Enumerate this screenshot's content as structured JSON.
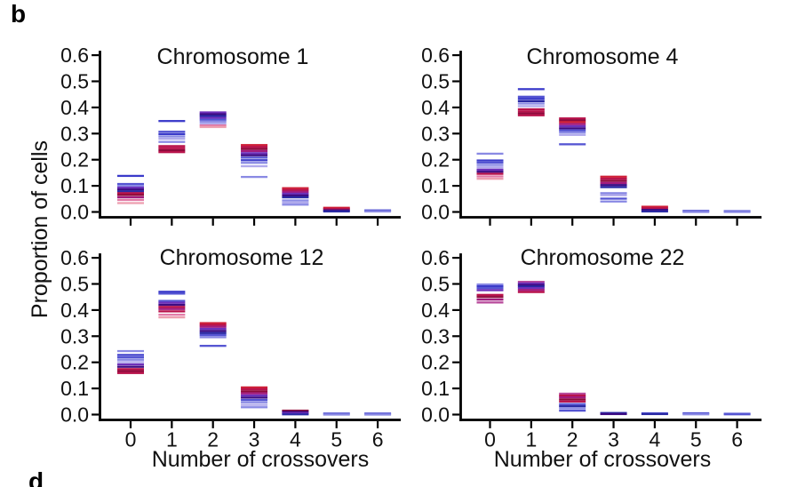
{
  "panel": {
    "top_label": "b",
    "bottom_label": "d"
  },
  "axis": {
    "ylabel": "Proportion of cells",
    "xlabel": "Number of crossovers"
  },
  "palette": {
    "blue": "#3b3bca",
    "navy": "#2a2aa4",
    "slate": "#5454d2",
    "periwinkle": "#8a8ae4",
    "lavender": "#b0aaec",
    "purple": "#6e30ba",
    "deepPurple": "#3d0c82",
    "magenta": "#a21b7e",
    "orchid": "#b84b9c",
    "crimson": "#b8124a",
    "darkRed": "#8e0a3c",
    "red": "#cf2038",
    "pink": "#e27aa6",
    "salmon": "#eda0b0"
  },
  "chart_data": [
    {
      "type": "scatter",
      "marker": "horizontal-dash",
      "title": "Chromosome 1",
      "xlabel": "Number of crossovers",
      "ylabel": "Proportion of cells",
      "x": [
        0,
        1,
        2,
        3,
        4,
        5,
        6
      ],
      "ylim": [
        0,
        0.6
      ],
      "yticks": [
        "0.6",
        "0.5",
        "0.4",
        "0.3",
        "0.2",
        "0.1",
        "0.0"
      ],
      "grid": false,
      "show_x_labels": false,
      "groups": [
        {
          "x": 0,
          "lines": [
            [
              0.138,
              "blue"
            ],
            [
              0.107,
              "slate"
            ],
            [
              0.1,
              "periwinkle"
            ],
            [
              0.093,
              "purple"
            ],
            [
              0.086,
              "deepPurple"
            ],
            [
              0.079,
              "navy"
            ],
            [
              0.072,
              "crimson"
            ],
            [
              0.065,
              "darkRed"
            ],
            [
              0.056,
              "magenta"
            ],
            [
              0.046,
              "pink"
            ],
            [
              0.034,
              "salmon"
            ]
          ]
        },
        {
          "x": 1,
          "lines": [
            [
              0.348,
              "blue"
            ],
            [
              0.307,
              "slate"
            ],
            [
              0.298,
              "blue"
            ],
            [
              0.289,
              "periwinkle"
            ],
            [
              0.28,
              "lavender"
            ],
            [
              0.268,
              "periwinkle"
            ],
            [
              0.252,
              "crimson"
            ],
            [
              0.244,
              "crimson"
            ],
            [
              0.236,
              "darkRed"
            ],
            [
              0.229,
              "crimson"
            ]
          ]
        },
        {
          "x": 2,
          "lines": [
            [
              0.381,
              "purple"
            ],
            [
              0.374,
              "deepPurple"
            ],
            [
              0.367,
              "navy"
            ],
            [
              0.36,
              "purple"
            ],
            [
              0.353,
              "slate"
            ],
            [
              0.346,
              "periwinkle"
            ],
            [
              0.338,
              "lavender"
            ],
            [
              0.331,
              "pink"
            ],
            [
              0.325,
              "salmon"
            ]
          ]
        },
        {
          "x": 3,
          "lines": [
            [
              0.256,
              "red"
            ],
            [
              0.249,
              "crimson"
            ],
            [
              0.241,
              "darkRed"
            ],
            [
              0.233,
              "magenta"
            ],
            [
              0.225,
              "purple"
            ],
            [
              0.217,
              "deepPurple"
            ],
            [
              0.208,
              "slate"
            ],
            [
              0.198,
              "blue"
            ],
            [
              0.188,
              "periwinkle"
            ],
            [
              0.175,
              "lavender"
            ],
            [
              0.134,
              "periwinkle"
            ]
          ]
        },
        {
          "x": 4,
          "lines": [
            [
              0.091,
              "red"
            ],
            [
              0.084,
              "crimson"
            ],
            [
              0.077,
              "magenta"
            ],
            [
              0.07,
              "purple"
            ],
            [
              0.063,
              "deepPurple"
            ],
            [
              0.056,
              "navy"
            ],
            [
              0.044,
              "periwinkle"
            ],
            [
              0.036,
              "lavender"
            ],
            [
              0.028,
              "periwinkle"
            ]
          ]
        },
        {
          "x": 5,
          "lines": [
            [
              0.016,
              "red"
            ],
            [
              0.011,
              "crimson"
            ],
            [
              0.006,
              "deepPurple"
            ],
            [
              0.002,
              "navy"
            ]
          ]
        },
        {
          "x": 6,
          "lines": [
            [
              0.006,
              "slate"
            ],
            [
              0.002,
              "periwinkle"
            ]
          ]
        }
      ]
    },
    {
      "type": "scatter",
      "marker": "horizontal-dash",
      "title": "Chromosome 4",
      "xlabel": "Number of crossovers",
      "ylabel": "Proportion of cells",
      "x": [
        0,
        1,
        2,
        3,
        4,
        5,
        6
      ],
      "ylim": [
        0,
        0.6
      ],
      "yticks": [
        "0.6",
        "0.5",
        "0.4",
        "0.3",
        "0.2",
        "0.1",
        "0.0"
      ],
      "grid": false,
      "show_x_labels": false,
      "groups": [
        {
          "x": 0,
          "lines": [
            [
              0.223,
              "periwinkle"
            ],
            [
              0.197,
              "blue"
            ],
            [
              0.189,
              "slate"
            ],
            [
              0.18,
              "periwinkle"
            ],
            [
              0.171,
              "lavender"
            ],
            [
              0.162,
              "purple"
            ],
            [
              0.154,
              "deepPurple"
            ],
            [
              0.146,
              "crimson"
            ],
            [
              0.136,
              "pink"
            ],
            [
              0.127,
              "salmon"
            ]
          ]
        },
        {
          "x": 1,
          "lines": [
            [
              0.47,
              "blue"
            ],
            [
              0.441,
              "slate"
            ],
            [
              0.433,
              "blue"
            ],
            [
              0.424,
              "navy"
            ],
            [
              0.415,
              "periwinkle"
            ],
            [
              0.405,
              "lavender"
            ],
            [
              0.393,
              "crimson"
            ],
            [
              0.385,
              "crimson"
            ],
            [
              0.377,
              "darkRed"
            ],
            [
              0.37,
              "crimson"
            ]
          ]
        },
        {
          "x": 2,
          "lines": [
            [
              0.358,
              "crimson"
            ],
            [
              0.351,
              "darkRed"
            ],
            [
              0.344,
              "red"
            ],
            [
              0.336,
              "magenta"
            ],
            [
              0.328,
              "purple"
            ],
            [
              0.32,
              "deepPurple"
            ],
            [
              0.312,
              "slate"
            ],
            [
              0.304,
              "periwinkle"
            ],
            [
              0.295,
              "lavender"
            ],
            [
              0.259,
              "slate"
            ]
          ]
        },
        {
          "x": 3,
          "lines": [
            [
              0.135,
              "red"
            ],
            [
              0.127,
              "crimson"
            ],
            [
              0.119,
              "darkRed"
            ],
            [
              0.111,
              "magenta"
            ],
            [
              0.103,
              "deepPurple"
            ],
            [
              0.095,
              "navy"
            ],
            [
              0.072,
              "periwinkle"
            ],
            [
              0.064,
              "lavender"
            ],
            [
              0.051,
              "slate"
            ],
            [
              0.04,
              "periwinkle"
            ]
          ]
        },
        {
          "x": 4,
          "lines": [
            [
              0.02,
              "red"
            ],
            [
              0.014,
              "crimson"
            ],
            [
              0.008,
              "deepPurple"
            ],
            [
              0.002,
              "navy"
            ]
          ]
        },
        {
          "x": 5,
          "lines": [
            [
              0.004,
              "slate"
            ],
            [
              0.0,
              "periwinkle"
            ]
          ]
        },
        {
          "x": 6,
          "lines": [
            [
              0.003,
              "slate"
            ],
            [
              0.0,
              "periwinkle"
            ]
          ]
        }
      ]
    },
    {
      "type": "scatter",
      "marker": "horizontal-dash",
      "title": "Chromosome 12",
      "xlabel": "Number of crossovers",
      "ylabel": "Proportion of cells",
      "x": [
        0,
        1,
        2,
        3,
        4,
        5,
        6
      ],
      "ylim": [
        0,
        0.6
      ],
      "yticks": [
        "0.6",
        "0.5",
        "0.4",
        "0.3",
        "0.2",
        "0.1",
        "0.0"
      ],
      "grid": false,
      "show_x_labels": true,
      "groups": [
        {
          "x": 0,
          "lines": [
            [
              0.243,
              "periwinkle"
            ],
            [
              0.228,
              "blue"
            ],
            [
              0.219,
              "slate"
            ],
            [
              0.21,
              "periwinkle"
            ],
            [
              0.201,
              "lavender"
            ],
            [
              0.192,
              "purple"
            ],
            [
              0.183,
              "deepPurple"
            ],
            [
              0.174,
              "crimson"
            ],
            [
              0.166,
              "darkRed"
            ],
            [
              0.159,
              "crimson"
            ]
          ]
        },
        {
          "x": 1,
          "lines": [
            [
              0.47,
              "blue"
            ],
            [
              0.463,
              "slate"
            ],
            [
              0.435,
              "slate"
            ],
            [
              0.428,
              "purple"
            ],
            [
              0.42,
              "deepPurple"
            ],
            [
              0.412,
              "crimson"
            ],
            [
              0.404,
              "magenta"
            ],
            [
              0.395,
              "crimson"
            ],
            [
              0.382,
              "pink"
            ],
            [
              0.372,
              "salmon"
            ]
          ]
        },
        {
          "x": 2,
          "lines": [
            [
              0.35,
              "red"
            ],
            [
              0.343,
              "crimson"
            ],
            [
              0.336,
              "magenta"
            ],
            [
              0.328,
              "purple"
            ],
            [
              0.32,
              "deepPurple"
            ],
            [
              0.312,
              "navy"
            ],
            [
              0.304,
              "slate"
            ],
            [
              0.296,
              "periwinkle"
            ],
            [
              0.263,
              "slate"
            ]
          ]
        },
        {
          "x": 3,
          "lines": [
            [
              0.104,
              "red"
            ],
            [
              0.097,
              "crimson"
            ],
            [
              0.089,
              "darkRed"
            ],
            [
              0.081,
              "magenta"
            ],
            [
              0.073,
              "purple"
            ],
            [
              0.065,
              "deepPurple"
            ],
            [
              0.056,
              "slate"
            ],
            [
              0.047,
              "periwinkle"
            ],
            [
              0.037,
              "lavender"
            ],
            [
              0.028,
              "periwinkle"
            ]
          ]
        },
        {
          "x": 4,
          "lines": [
            [
              0.015,
              "darkRed"
            ],
            [
              0.01,
              "deepPurple"
            ],
            [
              0.005,
              "purple"
            ],
            [
              0.001,
              "navy"
            ]
          ]
        },
        {
          "x": 5,
          "lines": [
            [
              0.004,
              "slate"
            ],
            [
              0.0,
              "periwinkle"
            ]
          ]
        },
        {
          "x": 6,
          "lines": [
            [
              0.004,
              "slate"
            ],
            [
              0.0,
              "periwinkle"
            ]
          ]
        }
      ]
    },
    {
      "type": "scatter",
      "marker": "horizontal-dash",
      "title": "Chromosome 22",
      "xlabel": "Number of crossovers",
      "ylabel": "Proportion of cells",
      "x": [
        0,
        1,
        2,
        3,
        4,
        5,
        6
      ],
      "ylim": [
        0,
        0.6
      ],
      "yticks": [
        "0.6",
        "0.5",
        "0.4",
        "0.3",
        "0.2",
        "0.1",
        "0.0"
      ],
      "grid": false,
      "show_x_labels": true,
      "groups": [
        {
          "x": 0,
          "lines": [
            [
              0.498,
              "periwinkle"
            ],
            [
              0.491,
              "blue"
            ],
            [
              0.484,
              "slate"
            ],
            [
              0.476,
              "purple"
            ],
            [
              0.458,
              "crimson"
            ],
            [
              0.45,
              "darkRed"
            ],
            [
              0.44,
              "magenta"
            ],
            [
              0.429,
              "orchid"
            ]
          ]
        },
        {
          "x": 1,
          "lines": [
            [
              0.508,
              "orchid"
            ],
            [
              0.502,
              "purple"
            ],
            [
              0.496,
              "deepPurple"
            ],
            [
              0.49,
              "navy"
            ],
            [
              0.484,
              "purple"
            ],
            [
              0.477,
              "magenta"
            ],
            [
              0.469,
              "crimson"
            ]
          ]
        },
        {
          "x": 2,
          "lines": [
            [
              0.08,
              "orchid"
            ],
            [
              0.073,
              "crimson"
            ],
            [
              0.066,
              "magenta"
            ],
            [
              0.058,
              "darkRed"
            ],
            [
              0.05,
              "crimson"
            ],
            [
              0.04,
              "slate"
            ],
            [
              0.032,
              "navy"
            ],
            [
              0.024,
              "periwinkle"
            ],
            [
              0.015,
              "slate"
            ]
          ]
        },
        {
          "x": 3,
          "lines": [
            [
              0.006,
              "navy"
            ],
            [
              0.002,
              "deepPurple"
            ]
          ]
        },
        {
          "x": 4,
          "lines": [
            [
              0.005,
              "slate"
            ],
            [
              0.002,
              "navy"
            ]
          ]
        },
        {
          "x": 5,
          "lines": [
            [
              0.005,
              "slate"
            ],
            [
              0.001,
              "periwinkle"
            ]
          ]
        },
        {
          "x": 6,
          "lines": [
            [
              0.004,
              "periwinkle"
            ],
            [
              0.001,
              "slate"
            ]
          ]
        }
      ]
    }
  ]
}
